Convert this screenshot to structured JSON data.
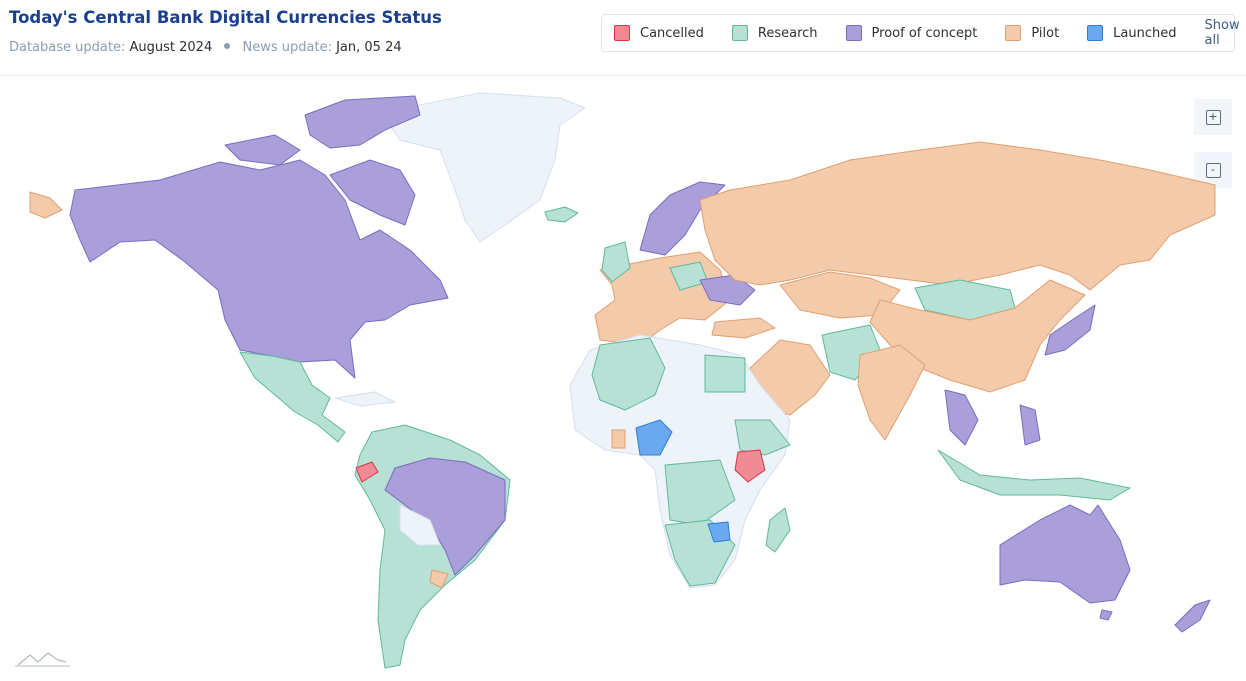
{
  "header": {
    "title": "Today's Central Bank Digital Currencies Status",
    "database_label": "Database update:",
    "database_value": "August 2024",
    "news_label": "News update:",
    "news_value": "Jan, 05 24"
  },
  "legend": {
    "items": [
      {
        "label": "Cancelled",
        "color": "#f08a94",
        "stroke": "#d9364a"
      },
      {
        "label": "Research",
        "color": "#b6e1d4",
        "stroke": "#5fb99c"
      },
      {
        "label": "Proof of concept",
        "color": "#ab9fd9",
        "stroke": "#7b6cc0"
      },
      {
        "label": "Pilot",
        "color": "#f3cbab",
        "stroke": "#e0a070"
      },
      {
        "label": "Launched",
        "color": "#6aa9ef",
        "stroke": "#2d7fd8"
      }
    ],
    "show_all": "Show all"
  },
  "zoom": {
    "in": "+",
    "out": "-"
  }
}
